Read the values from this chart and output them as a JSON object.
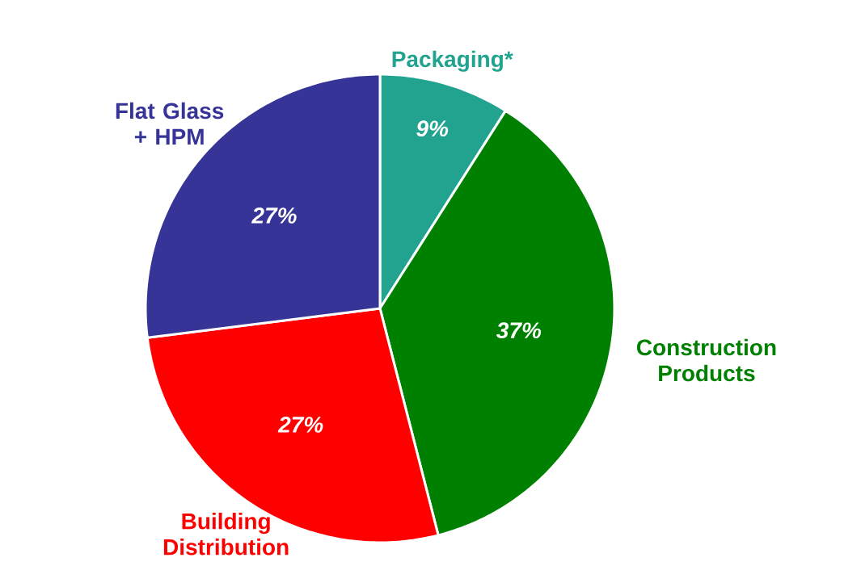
{
  "chart_data": {
    "type": "pie",
    "categories": [
      "Packaging*",
      "Construction Products",
      "Building Distribution",
      "Flat Glass + HPM"
    ],
    "values": [
      9,
      37,
      27,
      27
    ],
    "value_labels": [
      "9%",
      "37%",
      "27%",
      "27%"
    ],
    "colors": [
      "#21a390",
      "#008000",
      "#ff0000",
      "#363597"
    ]
  }
}
